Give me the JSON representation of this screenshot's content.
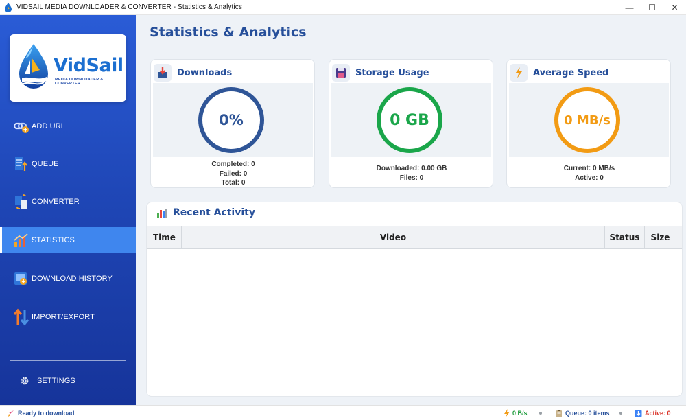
{
  "window": {
    "title": "VIDSAIL MEDIA DOWNLOADER & CONVERTER - Statistics & Analytics",
    "controls": {
      "minimize": "—",
      "maximize": "☐",
      "close": "✕"
    }
  },
  "logo": {
    "word": "VidSail",
    "tagline": "MEDIA DOWNLOADER & CONVERTER"
  },
  "sidebar": {
    "items": [
      {
        "label": "ADD URL",
        "icon": "link-add-icon"
      },
      {
        "label": "QUEUE",
        "icon": "queue-icon"
      },
      {
        "label": "CONVERTER",
        "icon": "convert-icon"
      },
      {
        "label": "STATISTICS",
        "icon": "chart-icon",
        "active": true
      },
      {
        "label": "DOWNLOAD HISTORY",
        "icon": "history-icon"
      },
      {
        "label": "IMPORT/EXPORT",
        "icon": "import-export-icon"
      }
    ],
    "settings": {
      "label": "SETTINGS",
      "icon": "gear-icon"
    }
  },
  "page": {
    "title": "Statistics & Analytics"
  },
  "cards": {
    "downloads": {
      "title": "Downloads",
      "value": "0%",
      "color": "#2f5597",
      "stats": [
        "Completed: 0",
        "Failed: 0",
        "Total: 0"
      ]
    },
    "storage": {
      "title": "Storage Usage",
      "value": "0 GB",
      "color": "#1aa64a",
      "stats": [
        "Downloaded: 0.00 GB",
        "Files: 0"
      ]
    },
    "speed": {
      "title": "Average Speed",
      "value": "0 MB/s",
      "color": "#f29b14",
      "stats": [
        "Current: 0 MB/s",
        "Active: 0"
      ]
    }
  },
  "recent": {
    "title": "Recent Activity",
    "columns": [
      "Time",
      "Video",
      "Status",
      "Size"
    ],
    "rows": []
  },
  "statusbar": {
    "message": "Ready to download",
    "speed": "0 B/s",
    "queue": "Queue: 0 items",
    "active": "Active: 0",
    "colors": {
      "speed": "#1e9c3c",
      "queue": "#264f9a",
      "active": "#d93025"
    }
  }
}
